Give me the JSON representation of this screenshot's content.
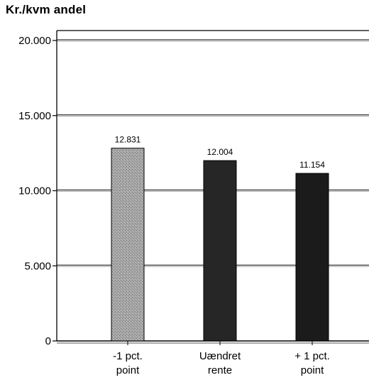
{
  "chart_data": {
    "type": "bar",
    "title": "",
    "ylabel": "Kr./kvm andel",
    "xlabel": "",
    "ylim": [
      0,
      20000
    ],
    "yticks": [
      0,
      5000,
      10000,
      15000,
      20000
    ],
    "ytick_labels": [
      "0",
      "5.000",
      "10.000",
      "15.000",
      "20.000"
    ],
    "categories": [
      [
        "-1 pct.",
        "point"
      ],
      [
        "Uændret",
        "rente"
      ],
      [
        "+ 1 pct.",
        "point"
      ]
    ],
    "values": [
      12831,
      12004,
      11154
    ],
    "data_labels": [
      "12.831",
      "12.004",
      "11.154"
    ],
    "bar_colors": [
      "#9c9c9c",
      "#262626",
      "#1b1b1b"
    ],
    "grid": true,
    "legend": "none"
  }
}
